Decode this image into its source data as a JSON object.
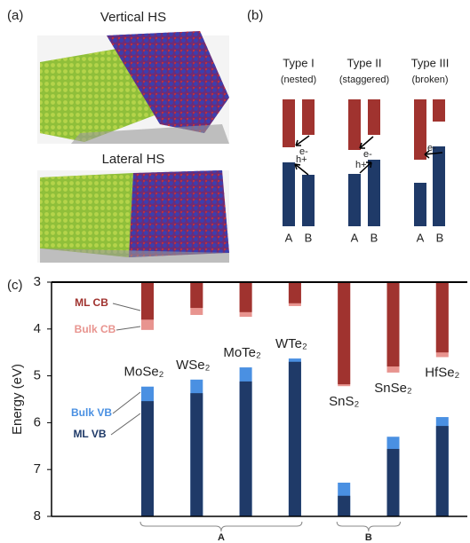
{
  "panels": {
    "a": {
      "label": "(a)",
      "titles": [
        "Vertical HS",
        "Lateral HS"
      ]
    },
    "b": {
      "label": "(b)",
      "types": [
        {
          "name": "Type I",
          "note": "(nested)"
        },
        {
          "name": "Type II",
          "note": "(staggered)"
        },
        {
          "name": "Type III",
          "note": "(broken)"
        }
      ],
      "materials": [
        "A",
        "B"
      ],
      "electron": "e-",
      "hole": "h+"
    }
  },
  "chart_data": {
    "type": "bar",
    "panel_label": "(c)",
    "y_label": "Energy (eV)",
    "categories": [
      "MoSe₂",
      "WSe₂",
      "MoTe₂",
      "WTe₂",
      "SnS₂",
      "SnSe₂",
      "HfSe₂"
    ],
    "groups": [
      "A",
      "B"
    ],
    "series": [
      {
        "name": "Bulk CB",
        "color": "#e8948f",
        "values": [
          4.02,
          3.7,
          3.74,
          3.51,
          5.22,
          4.93,
          4.6
        ]
      },
      {
        "name": "ML CB",
        "color": "#a0332f",
        "values": [
          3.8,
          3.55,
          3.64,
          3.45,
          5.18,
          4.8,
          4.5
        ]
      },
      {
        "name": "Bulk VB",
        "color": "#4a90e2",
        "values": [
          5.23,
          5.08,
          4.82,
          4.63,
          7.28,
          6.3,
          5.88
        ]
      },
      {
        "name": "ML VB",
        "color": "#1f3a68",
        "values": [
          5.54,
          5.37,
          5.12,
          4.7,
          7.56,
          6.56,
          6.07
        ]
      }
    ],
    "ylim": [
      8,
      3
    ],
    "yticks": [
      3,
      4,
      5,
      6,
      7,
      8
    ]
  }
}
